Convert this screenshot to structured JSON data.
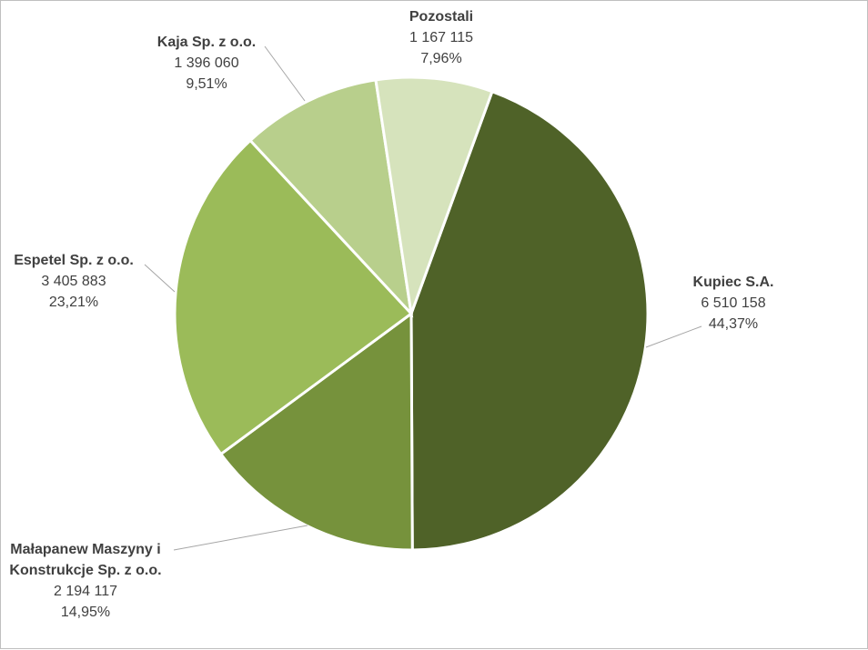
{
  "chart_data": {
    "type": "pie",
    "title": "",
    "series": [
      {
        "values": [
          6510158,
          2194117,
          3405883,
          1396060,
          1167115
        ]
      }
    ],
    "slices": [
      {
        "name_lines": [
          "Kupiec S.A."
        ],
        "value_label": "6 510 158",
        "percent_label": "44,37%",
        "value": 6510158,
        "color": "#4f6228"
      },
      {
        "name_lines": [
          "Małapanew Maszyny i",
          "Konstrukcje Sp. z o.o."
        ],
        "value_label": "2 194 117",
        "percent_label": "14,95%",
        "value": 2194117,
        "color": "#76923c"
      },
      {
        "name_lines": [
          "Espetel Sp. z o.o."
        ],
        "value_label": "3 405 883",
        "percent_label": "23,21%",
        "value": 3405883,
        "color": "#9bbb59"
      },
      {
        "name_lines": [
          "Kaja Sp. z o.o."
        ],
        "value_label": "1 396 060",
        "percent_label": "9,51%",
        "value": 1396060,
        "color": "#b8cf8c"
      },
      {
        "name_lines": [
          "Pozostali"
        ],
        "value_label": "1 167 115",
        "percent_label": "7,96%",
        "value": 1167115,
        "color": "#d6e3bc"
      }
    ],
    "legend": "none",
    "labels": "outside with leader lines"
  }
}
